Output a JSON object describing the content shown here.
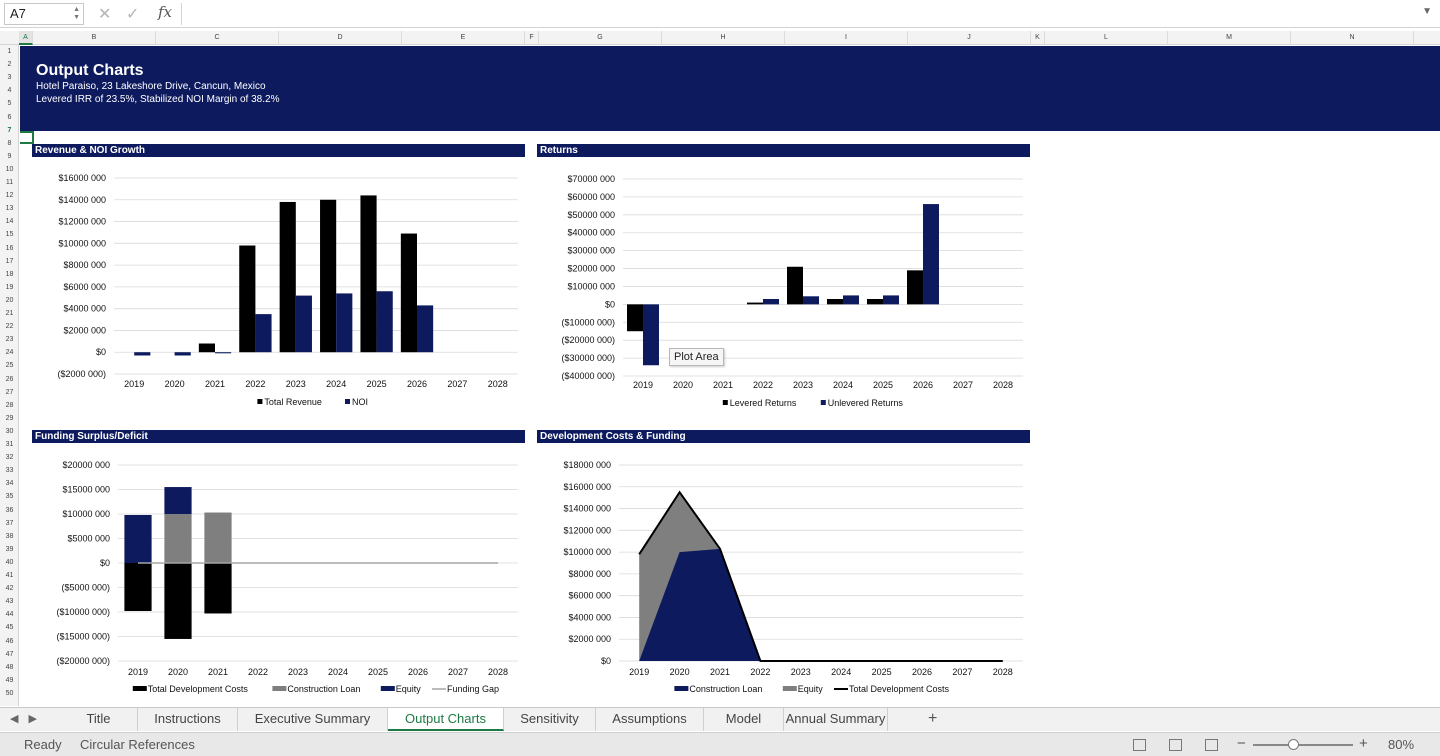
{
  "formula_bar": {
    "name_box": "A7",
    "formula": ""
  },
  "columns": [
    "A",
    "B",
    "C",
    "D",
    "E",
    "F",
    "G",
    "H",
    "I",
    "J",
    "K",
    "L",
    "M",
    "N"
  ],
  "selected_column": "A",
  "rows": [
    "1",
    "2",
    "3",
    "4",
    "5",
    "6",
    "7",
    "8",
    "9",
    "10",
    "11",
    "12",
    "13",
    "14",
    "15",
    "16",
    "17",
    "18",
    "19",
    "20",
    "21",
    "22",
    "23",
    "24",
    "25",
    "26",
    "27",
    "28",
    "29",
    "30",
    "31",
    "32",
    "33",
    "34",
    "35",
    "36",
    "37",
    "38",
    "39",
    "40",
    "41",
    "42",
    "43",
    "44",
    "45",
    "46",
    "47",
    "48",
    "49",
    "50"
  ],
  "selected_row": "7",
  "banner": {
    "title": "Output Charts",
    "line1": "Hotel Paraiso, 23 Lakeshore Drive, Cancun, Mexico",
    "line2": "Levered IRR of 23.5%, Stabilized NOI Margin of 38.2%"
  },
  "colors": {
    "navy": "#0d1a5e",
    "black": "#000000",
    "gray": "#7f7f7f",
    "accent": "#1d7a45"
  },
  "chart_data": [
    {
      "id": "rev",
      "title": "Revenue & NOI Growth",
      "type": "bar",
      "categories": [
        "2019",
        "2020",
        "2021",
        "2022",
        "2023",
        "2024",
        "2025",
        "2026",
        "2027",
        "2028"
      ],
      "series": [
        {
          "name": "Total Revenue",
          "color": "#000000",
          "values": [
            0,
            0,
            800000,
            9800000,
            13800000,
            14000000,
            14400000,
            10900000,
            0,
            0
          ]
        },
        {
          "name": "NOI",
          "color": "#0d1a5e",
          "values": [
            -300000,
            -300000,
            -100000,
            3500000,
            5200000,
            5400000,
            5600000,
            4300000,
            0,
            0
          ]
        }
      ],
      "ylim": [
        -2000000,
        16000000
      ],
      "yticks": [
        -2000000,
        0,
        2000000,
        4000000,
        6000000,
        8000000,
        10000000,
        12000000,
        14000000,
        16000000
      ],
      "ytick_labels": [
        "($2000 000)",
        "$0",
        "$2000 000",
        "$4000 000",
        "$6000 000",
        "$8000 000",
        "$10000 000",
        "$12000 000",
        "$14000 000",
        "$16000 000"
      ],
      "legend": "bottom"
    },
    {
      "id": "ret",
      "title": "Returns",
      "type": "bar",
      "categories": [
        "2019",
        "2020",
        "2021",
        "2022",
        "2023",
        "2024",
        "2025",
        "2026",
        "2027",
        "2028"
      ],
      "series": [
        {
          "name": "Levered Returns",
          "color": "#000000",
          "values": [
            -15000000,
            0,
            0,
            1000000,
            21000000,
            3000000,
            3000000,
            19000000,
            0,
            0
          ]
        },
        {
          "name": "Unlevered Returns",
          "color": "#0d1a5e",
          "values": [
            -34000000,
            0,
            0,
            3000000,
            4500000,
            5000000,
            5000000,
            56000000,
            0,
            0
          ]
        }
      ],
      "ylim": [
        -40000000,
        70000000
      ],
      "yticks": [
        -40000000,
        -30000000,
        -20000000,
        -10000000,
        0,
        10000000,
        20000000,
        30000000,
        40000000,
        50000000,
        60000000,
        70000000
      ],
      "ytick_labels": [
        "($40000 000)",
        "($30000 000)",
        "($20000 000)",
        "($10000 000)",
        "$0",
        "$10000 000",
        "$20000 000",
        "$30000 000",
        "$40000 000",
        "$50000 000",
        "$60000 000",
        "$70000 000"
      ],
      "legend": "bottom"
    },
    {
      "id": "fund",
      "title": "Funding Surplus/Deficit",
      "type": "bar",
      "categories": [
        "2019",
        "2020",
        "2021",
        "2022",
        "2023",
        "2024",
        "2025",
        "2026",
        "2027",
        "2028"
      ],
      "series": [
        {
          "name": "Total Development Costs",
          "color": "#000000",
          "values": [
            -9800000,
            -15500000,
            -10300000,
            0,
            0,
            0,
            0,
            0,
            0,
            0
          ]
        },
        {
          "name": "Construction Loan",
          "color": "#7f7f7f",
          "values": [
            0,
            10000000,
            10300000,
            0,
            0,
            0,
            0,
            0,
            0,
            0
          ]
        },
        {
          "name": "Equity",
          "color": "#0d1a5e",
          "values": [
            9800000,
            5500000,
            0,
            0,
            0,
            0,
            0,
            0,
            0,
            0
          ]
        },
        {
          "name": "Funding Gap",
          "color": "#a6a6a6",
          "values": [
            0,
            0,
            0,
            0,
            0,
            0,
            0,
            0,
            0,
            0
          ]
        }
      ],
      "ylim": [
        -20000000,
        20000000
      ],
      "yticks": [
        -20000000,
        -15000000,
        -10000000,
        -5000000,
        0,
        5000000,
        10000000,
        15000000,
        20000000
      ],
      "ytick_labels": [
        "($20000 000)",
        "($15000 000)",
        "($10000 000)",
        "($5000 000)",
        "$0",
        "$5000 000",
        "$10000 000",
        "$15000 000",
        "$20000 000"
      ],
      "legend": "bottom"
    },
    {
      "id": "dev",
      "title": "Development Costs & Funding",
      "type": "area",
      "categories": [
        "2019",
        "2020",
        "2021",
        "2022",
        "2023",
        "2024",
        "2025",
        "2026",
        "2027",
        "2028"
      ],
      "series": [
        {
          "name": "Construction Loan",
          "color": "#0d1a5e",
          "values": [
            0,
            10000000,
            10300000,
            0,
            0,
            0,
            0,
            0,
            0,
            0
          ]
        },
        {
          "name": "Equity",
          "color": "#7f7f7f",
          "values": [
            9800000,
            5500000,
            0,
            0,
            0,
            0,
            0,
            0,
            0,
            0
          ]
        },
        {
          "name": "Total Development Costs",
          "color": "#000000",
          "values": [
            9800000,
            15500000,
            10300000,
            0,
            0,
            0,
            0,
            0,
            0,
            0
          ]
        }
      ],
      "ylim": [
        0,
        18000000
      ],
      "yticks": [
        0,
        2000000,
        4000000,
        6000000,
        8000000,
        10000000,
        12000000,
        14000000,
        16000000,
        18000000
      ],
      "ytick_labels": [
        "$0",
        "$2000 000",
        "$4000 000",
        "$6000 000",
        "$8000 000",
        "$10000 000",
        "$12000 000",
        "$14000 000",
        "$16000 000",
        "$18000 000"
      ],
      "legend": "bottom"
    }
  ],
  "tooltip": "Plot Area",
  "tabs": [
    {
      "label": "Title"
    },
    {
      "label": "Instructions"
    },
    {
      "label": "Executive Summary"
    },
    {
      "label": "Output Charts",
      "active": true
    },
    {
      "label": "Sensitivity"
    },
    {
      "label": "Assumptions"
    },
    {
      "label": "Model"
    },
    {
      "label": "Annual Summary"
    }
  ],
  "status": {
    "ready": "Ready",
    "circular": "Circular References",
    "zoom": "80%"
  }
}
